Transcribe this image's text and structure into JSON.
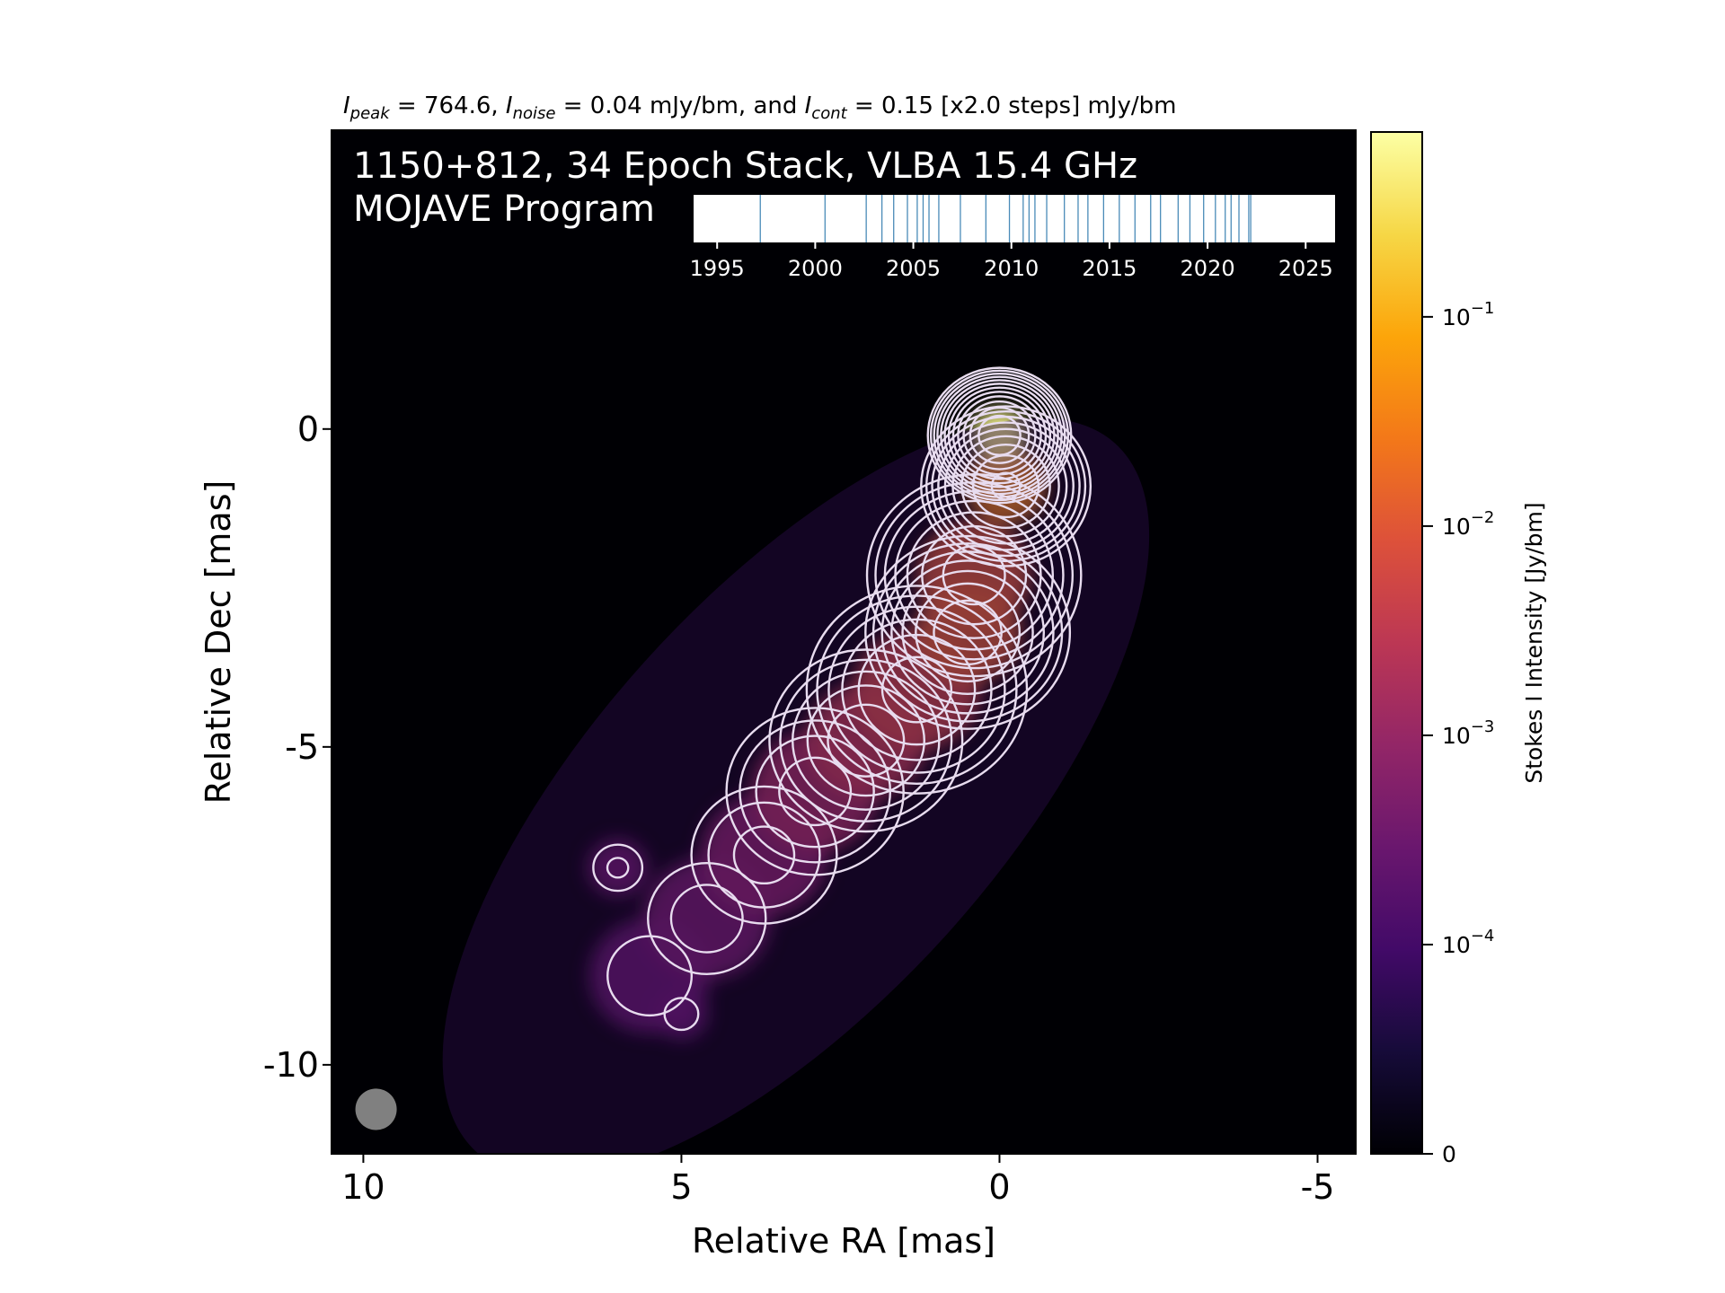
{
  "chart_data": {
    "type": "heatmap",
    "header": {
      "peak_symbol": "I",
      "peak_sub": "peak",
      "peak_text": " = 764.6, ",
      "noise_symbol": "I",
      "noise_sub": "noise",
      "noise_text": " = 0.04 mJy/bm, and ",
      "cont_symbol": "I",
      "cont_sub": "cont",
      "cont_text": " = 0.15 [x2.0 steps] mJy/bm"
    },
    "annotation_line1": "1150+812, 34 Epoch Stack, VLBA 15.4 GHz",
    "annotation_line2": "MOJAVE Program",
    "xlabel": "Relative RA [mas]",
    "ylabel": "Relative Dec [mas]",
    "x_ticks": [
      10,
      5,
      0,
      -5
    ],
    "x_tick_labels": [
      "10",
      "5",
      "0",
      "-5"
    ],
    "y_ticks": [
      0,
      -5,
      -10
    ],
    "y_tick_labels": [
      "0",
      "-5",
      "-10"
    ],
    "xlim": [
      10.5,
      -5.6
    ],
    "ylim": [
      -11.4,
      4.7
    ],
    "colormap": "inferno",
    "colorbar": {
      "label": "Stokes I Intensity [Jy/bm]",
      "scale": "symlog",
      "range": [
        0,
        0.7646
      ],
      "linthresh": 0.0001,
      "ticks": [
        {
          "value": 0,
          "base": "0",
          "exp": ""
        },
        {
          "value": 0.0001,
          "base": "10",
          "exp": "−4"
        },
        {
          "value": 0.001,
          "base": "10",
          "exp": "−3"
        },
        {
          "value": 0.01,
          "base": "10",
          "exp": "−2"
        },
        {
          "value": 0.1,
          "base": "10",
          "exp": "−1"
        }
      ]
    },
    "peak_mjy_per_beam": 764.6,
    "noise_mjy_per_beam": 0.04,
    "contour_base_mjy_per_beam": 0.15,
    "contour_step_factor": 2.0,
    "beam": {
      "ra": 9.8,
      "dec": -10.7,
      "diameter_mas": 0.65,
      "color": "#808080"
    },
    "epoch_timeline": {
      "xlim": [
        1993.8,
        2026.5
      ],
      "ticks": [
        1995,
        2000,
        2005,
        2010,
        2015,
        2020,
        2025
      ],
      "tick_labels": [
        "1995",
        "2000",
        "2005",
        "2010",
        "2015",
        "2020",
        "2025"
      ],
      "epochs": [
        1997.2,
        2000.5,
        2002.6,
        2003.4,
        2004.0,
        2004.7,
        2005.2,
        2005.5,
        2005.8,
        2006.3,
        2007.4,
        2008.7,
        2009.9,
        2010.6,
        2010.9,
        2011.2,
        2011.8,
        2012.7,
        2013.4,
        2013.9,
        2014.7,
        2015.5,
        2016.3,
        2017.1,
        2017.6,
        2018.5,
        2019.1,
        2019.8,
        2020.4,
        2020.9,
        2021.2,
        2021.6,
        2022.1,
        2022.2
      ],
      "line_color": "#4a8bb8"
    },
    "jet_components": [
      {
        "ra": 0.0,
        "dec": -0.1,
        "sigma_mas": 0.42,
        "flux_jy_per_bm": 0.62
      },
      {
        "ra": -0.1,
        "dec": -0.9,
        "sigma_mas": 0.6,
        "flux_jy_per_bm": 0.045
      },
      {
        "ra": 0.4,
        "dec": -2.3,
        "sigma_mas": 0.85,
        "flux_jy_per_bm": 0.014
      },
      {
        "ra": 0.5,
        "dec": -3.2,
        "sigma_mas": 0.8,
        "flux_jy_per_bm": 0.016
      },
      {
        "ra": 1.3,
        "dec": -4.1,
        "sigma_mas": 0.95,
        "flux_jy_per_bm": 0.007
      },
      {
        "ra": 2.1,
        "dec": -4.9,
        "sigma_mas": 0.9,
        "flux_jy_per_bm": 0.004
      },
      {
        "ra": 2.9,
        "dec": -5.7,
        "sigma_mas": 0.95,
        "flux_jy_per_bm": 0.0018
      },
      {
        "ra": 3.7,
        "dec": -6.7,
        "sigma_mas": 0.95,
        "flux_jy_per_bm": 0.0008
      },
      {
        "ra": 4.6,
        "dec": -7.7,
        "sigma_mas": 0.95,
        "flux_jy_per_bm": 0.00045
      },
      {
        "ra": 5.5,
        "dec": -8.6,
        "sigma_mas": 0.9,
        "flux_jy_per_bm": 0.00028
      },
      {
        "ra": 6.0,
        "dec": -6.9,
        "sigma_mas": 0.45,
        "flux_jy_per_bm": 0.00035
      },
      {
        "ra": 5.0,
        "dec": -9.2,
        "sigma_mas": 0.4,
        "flux_jy_per_bm": 0.00025
      }
    ]
  }
}
